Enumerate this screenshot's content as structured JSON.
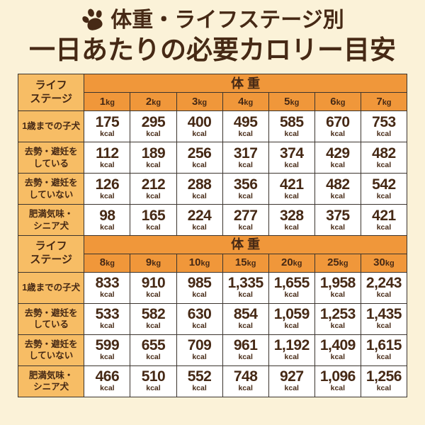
{
  "colors": {
    "background": "#fbf2d8",
    "title_text": "#462915",
    "header_orange": "#f0973a",
    "row_label_light_orange": "#f7bd65",
    "cell_background": "#ffffff",
    "border": "#3b342e",
    "value_text": "#462915"
  },
  "header": {
    "paw_icon": "paw-icon",
    "line1": "体重・ライフステージ別",
    "line2": "一日あたりの必要カロリー目安"
  },
  "chart_data": [
    {
      "type": "table",
      "title": "一日あたりの必要カロリー目安（体重1kg〜7kg）",
      "corner_header": "ライフ\nステージ",
      "column_group_header": "体 重",
      "columns": [
        "1kg",
        "2kg",
        "3kg",
        "4kg",
        "5kg",
        "6kg",
        "7kg"
      ],
      "unit": "kcal",
      "rows": [
        {
          "label": "1歳までの子犬",
          "values": [
            "175",
            "295",
            "400",
            "495",
            "585",
            "670",
            "753"
          ]
        },
        {
          "label": "去勢・避妊を\nしている",
          "values": [
            "112",
            "189",
            "256",
            "317",
            "374",
            "429",
            "482"
          ]
        },
        {
          "label": "去勢・避妊を\nしていない",
          "values": [
            "126",
            "212",
            "288",
            "356",
            "421",
            "482",
            "542"
          ]
        },
        {
          "label": "肥満気味・\nシニア犬",
          "values": [
            "98",
            "165",
            "224",
            "277",
            "328",
            "375",
            "421"
          ]
        }
      ]
    },
    {
      "type": "table",
      "title": "一日あたりの必要カロリー目安（体重8kg〜30kg）",
      "corner_header": "ライフ\nステージ",
      "column_group_header": "体 重",
      "columns": [
        "8kg",
        "9kg",
        "10kg",
        "15kg",
        "20kg",
        "25kg",
        "30kg"
      ],
      "unit": "kcal",
      "rows": [
        {
          "label": "1歳までの子犬",
          "values": [
            "833",
            "910",
            "985",
            "1,335",
            "1,655",
            "1,958",
            "2,243"
          ]
        },
        {
          "label": "去勢・避妊を\nしている",
          "values": [
            "533",
            "582",
            "630",
            "854",
            "1,059",
            "1,253",
            "1,435"
          ]
        },
        {
          "label": "去勢・避妊を\nしていない",
          "values": [
            "599",
            "655",
            "709",
            "961",
            "1,192",
            "1,409",
            "1,615"
          ]
        },
        {
          "label": "肥満気味・\nシニア犬",
          "values": [
            "466",
            "510",
            "552",
            "748",
            "927",
            "1,096",
            "1,256"
          ]
        }
      ]
    }
  ]
}
